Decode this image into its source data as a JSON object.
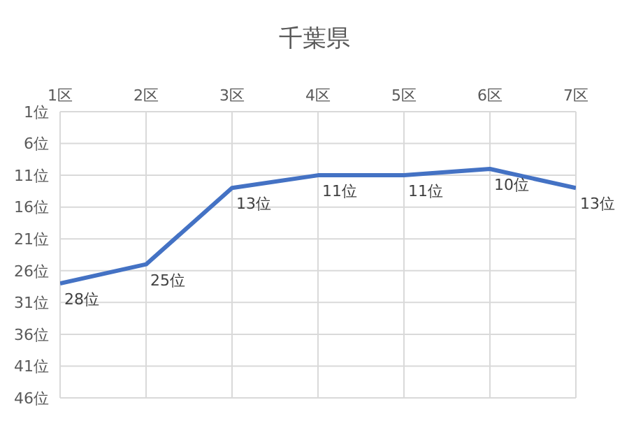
{
  "chart_data": {
    "type": "line",
    "title": "千葉県",
    "categories": [
      "1区",
      "2区",
      "3区",
      "4区",
      "5区",
      "6区",
      "7区"
    ],
    "series": [
      {
        "color": "#4472c4",
        "values": [
          28,
          25,
          13,
          11,
          11,
          10,
          13
        ],
        "value_labels": [
          "28位",
          "25位",
          "13位",
          "11位",
          "11位",
          "10位",
          "13位"
        ]
      }
    ],
    "ylim": [
      46,
      1
    ],
    "yticks": [
      {
        "value": 1,
        "label": "1位"
      },
      {
        "value": 6,
        "label": "6位"
      },
      {
        "value": 11,
        "label": "11位"
      },
      {
        "value": 16,
        "label": "16位"
      },
      {
        "value": 21,
        "label": "21位"
      },
      {
        "value": 26,
        "label": "26位"
      },
      {
        "value": 31,
        "label": "31位"
      },
      {
        "value": 36,
        "label": "36位"
      },
      {
        "value": 41,
        "label": "41位"
      },
      {
        "value": 46,
        "label": "46位"
      }
    ],
    "grid": true,
    "marker": "none",
    "line_style": "solid"
  }
}
